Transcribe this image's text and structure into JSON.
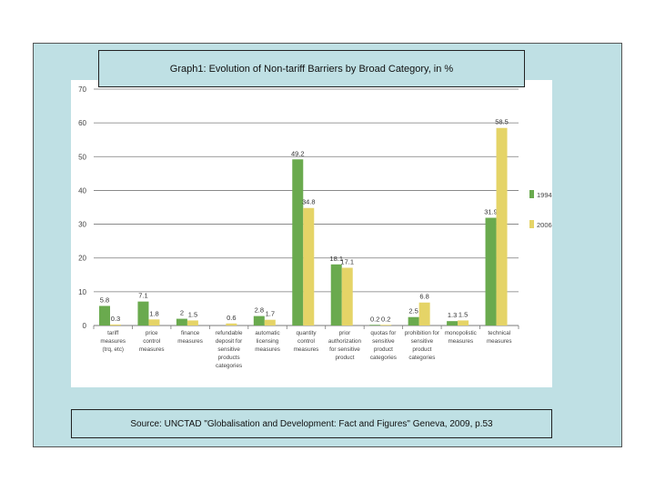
{
  "slide": {
    "title": "Graph1: Evolution of Non-tariff Barriers by Broad Category, in %",
    "source": "Source: UNCTAD \"Globalisation and Development: Fact and Figures\" Geneva, 2009, p.53"
  },
  "colors": {
    "frame_bg": "#bfe0e4",
    "series_1994": "#6aaa4e",
    "series_2006": "#e5d467",
    "grid": "#7a7a7a"
  },
  "chart_data": {
    "type": "bar",
    "title": "",
    "xlabel": "",
    "ylabel": "",
    "ylim": [
      0,
      70
    ],
    "yticks": [
      0,
      10,
      20,
      30,
      40,
      50,
      60,
      70
    ],
    "grid": true,
    "legend_position": "right",
    "categories": [
      [
        "tariff",
        "measures",
        "(trq, etc)"
      ],
      [
        "price",
        "control",
        "measures"
      ],
      [
        "finance",
        "measures"
      ],
      [
        "refundable",
        "deposit for",
        "sensitive",
        "products",
        "categories"
      ],
      [
        "automatic",
        "licensing",
        "measures"
      ],
      [
        "quantity",
        "control",
        "measures"
      ],
      [
        "prior",
        "authorization",
        "for sensitive",
        "product"
      ],
      [
        "quotas for",
        "sensitive",
        "product",
        "categories"
      ],
      [
        "prohibition for",
        "sensitive",
        "product",
        "categories"
      ],
      [
        "monopolistic",
        "measures"
      ],
      [
        "technical",
        "measures"
      ]
    ],
    "series": [
      {
        "name": "1994",
        "color": "#6aaa4e",
        "values": [
          5.8,
          7.1,
          2,
          null,
          2.8,
          49.2,
          18.1,
          0.2,
          2.5,
          1.3,
          31.9
        ],
        "labels": [
          "5.8",
          "7.1",
          "2",
          "",
          "2.8",
          "49.2",
          "18.1",
          "0.2",
          "2.5",
          "1.3",
          "31.9"
        ]
      },
      {
        "name": "2006",
        "color": "#e5d467",
        "values": [
          0.3,
          1.8,
          1.5,
          0.6,
          1.7,
          34.8,
          17.1,
          0.2,
          6.8,
          1.5,
          58.5
        ],
        "labels": [
          "0.3",
          "1.8",
          "1.5",
          "0.6",
          "1.7",
          "34.8",
          "17.1",
          "0.2",
          "6.8",
          "1.5",
          "58.5"
        ]
      }
    ]
  }
}
